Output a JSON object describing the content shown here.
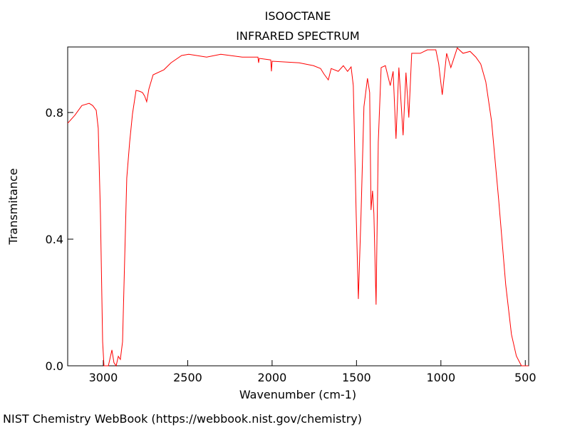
{
  "chart_data": {
    "type": "line",
    "title": "ISOOCTANE",
    "subtitle": "INFRARED SPECTRUM",
    "x_label": "Wavenumber (cm-1)",
    "y_label": "Transmitance",
    "source": "NIST Chemistry WebBook (https://webbook.nist.gov/chemistry)",
    "xlim": [
      3211,
      480
    ],
    "ylim": [
      0,
      1.007
    ],
    "xticks": [
      3000,
      2500,
      2000,
      1500,
      1000,
      500
    ],
    "yticks": [
      {
        "value": 0,
        "label": "0.0"
      },
      0.4,
      0.8
    ],
    "color": "#ff0000",
    "x": [
      3211,
      3169,
      3127,
      3084,
      3063,
      3042,
      3030,
      3017,
      3004,
      2996,
      2970,
      2949,
      2937,
      2924,
      2911,
      2899,
      2886,
      2873,
      2861,
      2844,
      2827,
      2806,
      2785,
      2768,
      2755,
      2743,
      2730,
      2705,
      2641,
      2599,
      2536,
      2494,
      2388,
      2304,
      2177,
      2084,
      2080,
      2076,
      2008,
      2004,
      2000,
      1840,
      1755,
      1713,
      1692,
      1667,
      1650,
      1608,
      1578,
      1553,
      1532,
      1519,
      1502,
      1489,
      1473,
      1456,
      1435,
      1422,
      1414,
      1405,
      1397,
      1384,
      1371,
      1354,
      1329,
      1300,
      1283,
      1266,
      1249,
      1224,
      1207,
      1190,
      1173,
      1122,
      1080,
      1030,
      1013,
      992,
      966,
      941,
      903,
      869,
      827,
      793,
      764,
      734,
      700,
      658,
      616,
      582,
      553,
      523,
      481
    ],
    "values": [
      0.766,
      0.791,
      0.822,
      0.829,
      0.822,
      0.807,
      0.75,
      0.48,
      0.076,
      0,
      0,
      0.05,
      0.01,
      0,
      0.03,
      0.02,
      0.076,
      0.346,
      0.593,
      0.706,
      0.796,
      0.87,
      0.867,
      0.863,
      0.852,
      0.834,
      0.874,
      0.919,
      0.935,
      0.957,
      0.98,
      0.984,
      0.975,
      0.984,
      0.975,
      0.975,
      0.957,
      0.971,
      0.966,
      0.93,
      0.962,
      0.957,
      0.948,
      0.939,
      0.921,
      0.903,
      0.939,
      0.93,
      0.948,
      0.93,
      0.944,
      0.885,
      0.481,
      0.211,
      0.481,
      0.818,
      0.908,
      0.863,
      0.492,
      0.553,
      0.481,
      0.193,
      0.706,
      0.942,
      0.948,
      0.885,
      0.93,
      0.717,
      0.942,
      0.728,
      0.926,
      0.784,
      0.987,
      0.987,
      0.998,
      0.998,
      0.953,
      0.856,
      0.987,
      0.942,
      1.004,
      0.987,
      0.993,
      0.975,
      0.953,
      0.897,
      0.773,
      0.526,
      0.256,
      0.099,
      0.031,
      0,
      0
    ]
  }
}
